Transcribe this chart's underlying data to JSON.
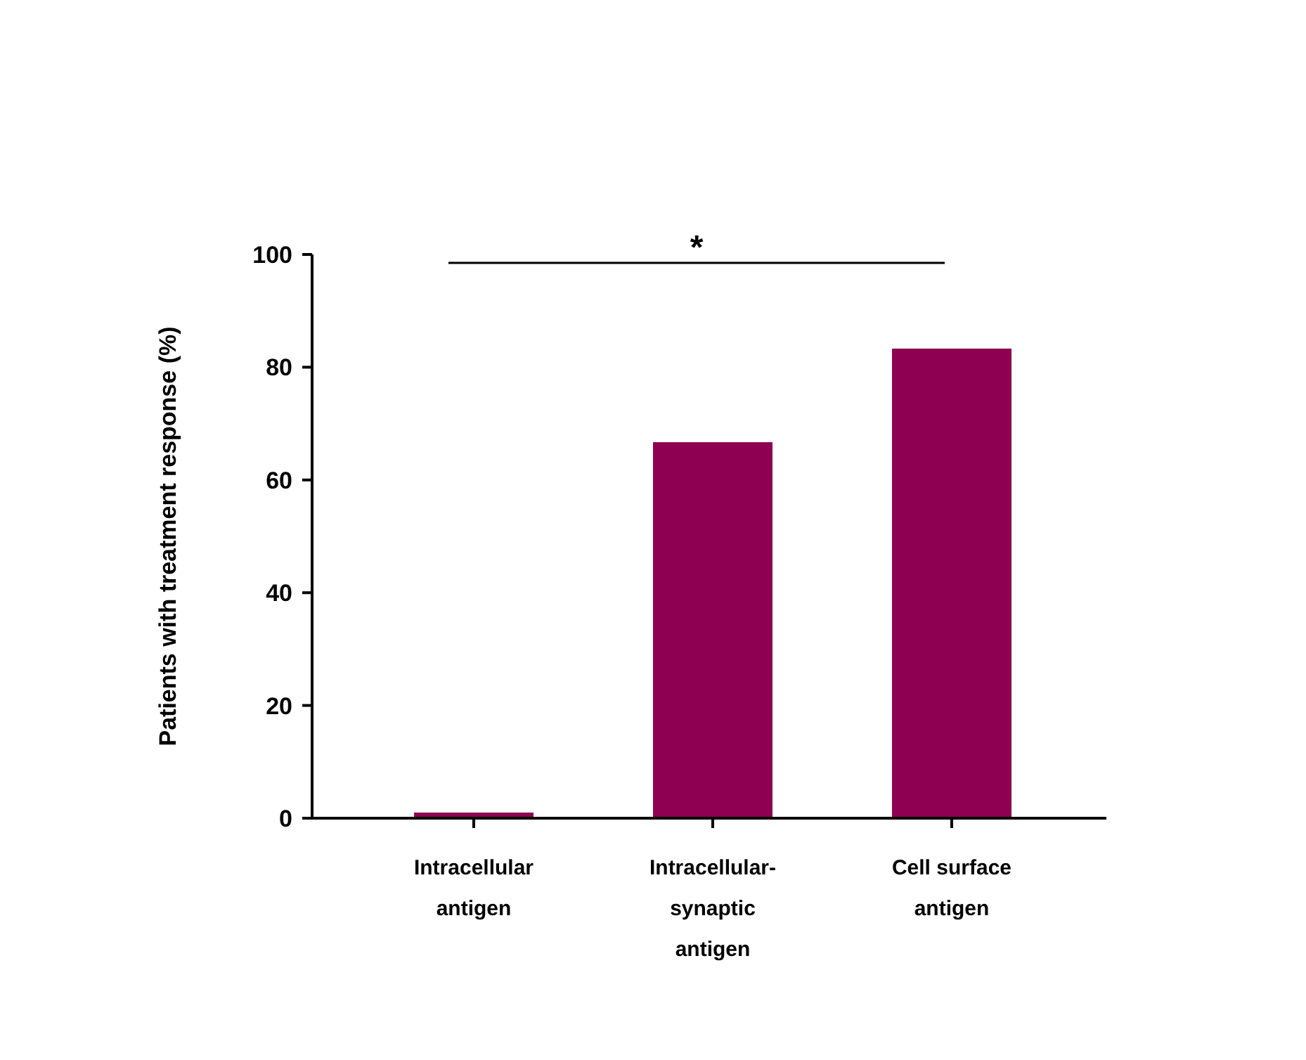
{
  "chart_data": {
    "type": "bar",
    "ylabel": "Patients with treatment response (%)",
    "categories": [
      "Intracellular\nantigen",
      "Intracellular-\nsynaptic\nantigen",
      "Cell surface\nantigen"
    ],
    "values": [
      1,
      66.7,
      83.3
    ],
    "color": "#8e0052",
    "ylim": [
      0,
      100
    ],
    "yticks": [
      0,
      20,
      40,
      60,
      80,
      100
    ],
    "annotations": [
      "*"
    ]
  }
}
